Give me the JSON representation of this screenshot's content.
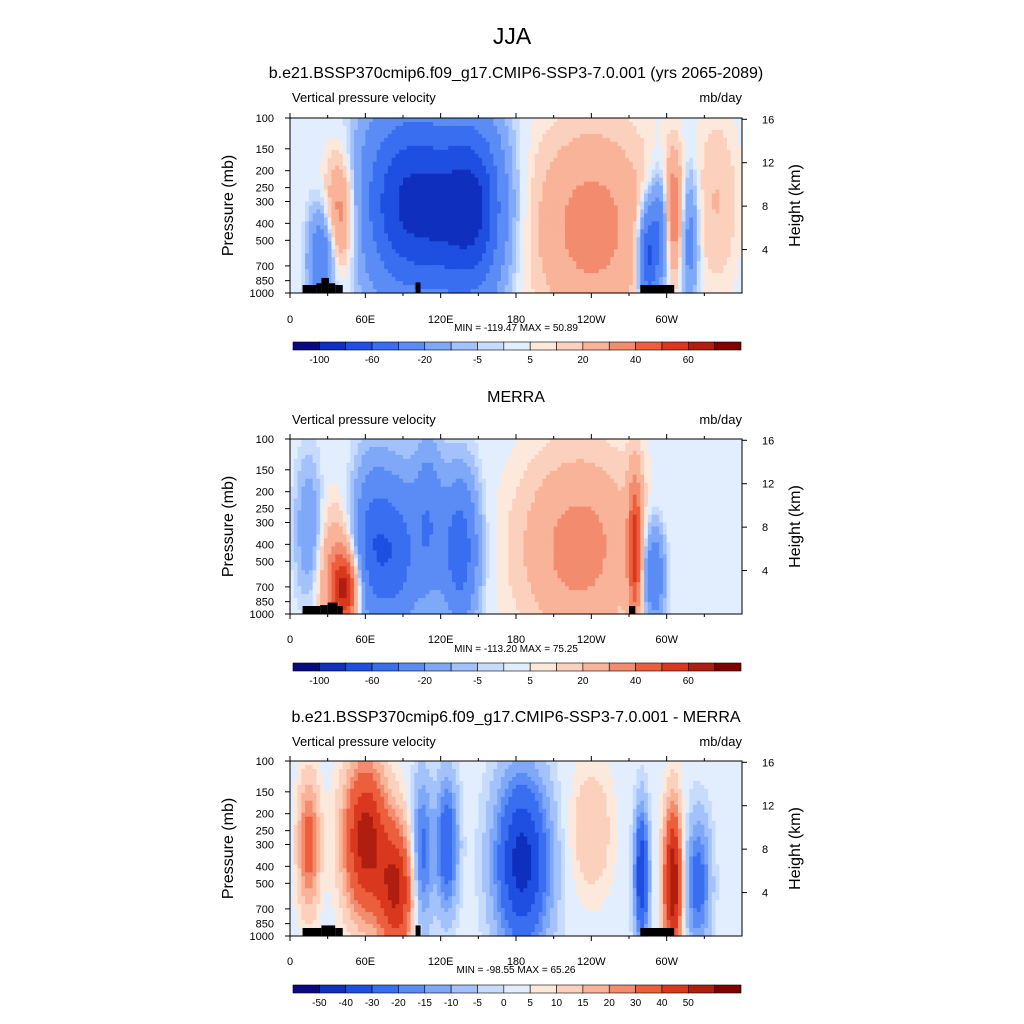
{
  "figure_title": "JJA",
  "chart_data": [
    {
      "type": "heatmap",
      "title": "b.e21.BSSP370cmip6.f09_g17.CMIP6-SSP3-7.0.001 (yrs 2065-2089)",
      "left_label": "Vertical pressure velocity",
      "units": "mb/day",
      "ylabel": "Pressure (mb)",
      "ylabel_right": "Height (km)",
      "x_ticks": [
        "0",
        "60E",
        "120E",
        "180",
        "120W",
        "60W"
      ],
      "y_ticks": [
        "100",
        "150",
        "200",
        "250",
        "300",
        "400",
        "500",
        "700",
        "850",
        "1000"
      ],
      "y_right_ticks": [
        "16",
        "12",
        "8",
        "4"
      ],
      "stats": "MIN = -119.47  MAX =  50.89",
      "min": -119.47,
      "max": 50.89,
      "colorbar_levels": [
        -120,
        -100,
        -80,
        -60,
        -40,
        -20,
        -10,
        -5,
        -2,
        2,
        5,
        10,
        20,
        30,
        40,
        50,
        60,
        70
      ],
      "colorbar_labels": [
        "-100",
        "-60",
        "-20",
        "-5",
        "5",
        "20",
        "40",
        "60"
      ],
      "features": [
        {
          "lon": 40,
          "p": 350,
          "value": 30,
          "wlon": 9,
          "wp": 0.55
        },
        {
          "lon": 25,
          "p": 650,
          "value": -40,
          "wlon": 7,
          "wp": 0.45
        },
        {
          "lon": 85,
          "p": 300,
          "value": -60,
          "wlon": 22,
          "wp": 0.85
        },
        {
          "lon": 125,
          "p": 330,
          "value": -70,
          "wlon": 25,
          "wp": 0.85
        },
        {
          "lon": 150,
          "p": 330,
          "value": -45,
          "wlon": 15,
          "wp": 0.8
        },
        {
          "lon": 240,
          "p": 420,
          "value": 25,
          "wlon": 33,
          "wp": 0.9
        },
        {
          "lon": 285,
          "p": 620,
          "value": -65,
          "wlon": 5,
          "wp": 0.45
        },
        {
          "lon": 295,
          "p": 450,
          "value": -45,
          "wlon": 5,
          "wp": 0.5
        },
        {
          "lon": 305,
          "p": 350,
          "value": 30,
          "wlon": 6,
          "wp": 0.55
        },
        {
          "lon": 318,
          "p": 500,
          "value": -30,
          "wlon": 5,
          "wp": 0.6
        },
        {
          "lon": 340,
          "p": 300,
          "value": 10,
          "wlon": 12,
          "wp": 0.8
        }
      ],
      "topography": [
        [
          10,
          21,
          900
        ],
        [
          21,
          25,
          880
        ],
        [
          25,
          31,
          820
        ],
        [
          31,
          36,
          880
        ],
        [
          36,
          42,
          900
        ],
        [
          100,
          104,
          870
        ],
        [
          279,
          306,
          900
        ]
      ]
    },
    {
      "type": "heatmap",
      "title": "MERRA",
      "left_label": "Vertical pressure velocity",
      "units": "mb/day",
      "ylabel": "Pressure (mb)",
      "ylabel_right": "Height (km)",
      "x_ticks": [
        "0",
        "60E",
        "120E",
        "180",
        "120W",
        "60W"
      ],
      "y_ticks": [
        "100",
        "150",
        "200",
        "250",
        "300",
        "400",
        "500",
        "700",
        "850",
        "1000"
      ],
      "y_right_ticks": [
        "16",
        "12",
        "8",
        "4"
      ],
      "stats": "MIN = -113.20  MAX =  75.25",
      "min": -113.2,
      "max": 75.25,
      "colorbar_levels": [
        -120,
        -100,
        -80,
        -60,
        -40,
        -20,
        -10,
        -5,
        -2,
        2,
        5,
        10,
        20,
        30,
        40,
        50,
        60,
        70
      ],
      "colorbar_labels": [
        "-100",
        "-60",
        "-20",
        "-5",
        "5",
        "20",
        "40",
        "60"
      ],
      "features": [
        {
          "lon": 15,
          "p": 330,
          "value": -20,
          "wlon": 7,
          "wp": 0.6
        },
        {
          "lon": 35,
          "p": 600,
          "value": 20,
          "wlon": 10,
          "wp": 0.6
        },
        {
          "lon": 45,
          "p": 720,
          "value": 45,
          "wlon": 8,
          "wp": 0.35
        },
        {
          "lon": 65,
          "p": 400,
          "value": -45,
          "wlon": 10,
          "wp": 0.7
        },
        {
          "lon": 85,
          "p": 450,
          "value": -50,
          "wlon": 12,
          "wp": 0.7
        },
        {
          "lon": 110,
          "p": 300,
          "value": -35,
          "wlon": 8,
          "wp": 0.7
        },
        {
          "lon": 135,
          "p": 430,
          "value": -55,
          "wlon": 10,
          "wp": 0.65
        },
        {
          "lon": 230,
          "p": 420,
          "value": 25,
          "wlon": 32,
          "wp": 0.85
        },
        {
          "lon": 275,
          "p": 420,
          "value": 40,
          "wlon": 4,
          "wp": 0.7
        },
        {
          "lon": 290,
          "p": 600,
          "value": -40,
          "wlon": 6,
          "wp": 0.45
        }
      ],
      "topography": [
        [
          10,
          24,
          900
        ],
        [
          24,
          30,
          890
        ],
        [
          30,
          38,
          860
        ],
        [
          38,
          42,
          900
        ],
        [
          270,
          275,
          900
        ]
      ]
    },
    {
      "type": "heatmap",
      "title": "b.e21.BSSP370cmip6.f09_g17.CMIP6-SSP3-7.0.001 - MERRA",
      "left_label": "Vertical pressure velocity",
      "units": "mb/day",
      "ylabel": "Pressure (mb)",
      "ylabel_right": "Height (km)",
      "x_ticks": [
        "0",
        "60E",
        "120E",
        "180",
        "120W",
        "60W"
      ],
      "y_ticks": [
        "100",
        "150",
        "200",
        "250",
        "300",
        "400",
        "500",
        "700",
        "850",
        "1000"
      ],
      "y_right_ticks": [
        "16",
        "12",
        "8",
        "4"
      ],
      "stats": "MIN = -98.55  MAX =  65.26",
      "min": -98.55,
      "max": 65.26,
      "colorbar_levels": [
        -60,
        -50,
        -40,
        -30,
        -20,
        -15,
        -10,
        -5,
        -2,
        2,
        5,
        10,
        15,
        20,
        30,
        40,
        50,
        60
      ],
      "colorbar_labels": [
        "-50",
        "-40",
        "-30",
        "-20",
        "-15",
        "-10",
        "-5",
        "0",
        "5",
        "10",
        "15",
        "20",
        "30",
        "40",
        "50"
      ],
      "features": [
        {
          "lon": 15,
          "p": 300,
          "value": 25,
          "wlon": 6,
          "wp": 0.6
        },
        {
          "lon": 60,
          "p": 280,
          "value": 45,
          "wlon": 12,
          "wp": 0.7
        },
        {
          "lon": 85,
          "p": 550,
          "value": 40,
          "wlon": 10,
          "wp": 0.6
        },
        {
          "lon": 105,
          "p": 350,
          "value": -25,
          "wlon": 6,
          "wp": 0.7
        },
        {
          "lon": 125,
          "p": 300,
          "value": -30,
          "wlon": 6,
          "wp": 0.6
        },
        {
          "lon": 185,
          "p": 380,
          "value": -45,
          "wlon": 15,
          "wp": 0.8
        },
        {
          "lon": 240,
          "p": 250,
          "value": 10,
          "wlon": 12,
          "wp": 0.6
        },
        {
          "lon": 280,
          "p": 450,
          "value": -40,
          "wlon": 4,
          "wp": 0.6
        },
        {
          "lon": 305,
          "p": 500,
          "value": 50,
          "wlon": 5,
          "wp": 0.7
        },
        {
          "lon": 325,
          "p": 500,
          "value": -25,
          "wlon": 7,
          "wp": 0.6
        }
      ],
      "topography": [
        [
          10,
          25,
          900
        ],
        [
          25,
          36,
          870
        ],
        [
          36,
          42,
          900
        ],
        [
          100,
          104,
          870
        ],
        [
          279,
          306,
          900
        ]
      ]
    }
  ]
}
